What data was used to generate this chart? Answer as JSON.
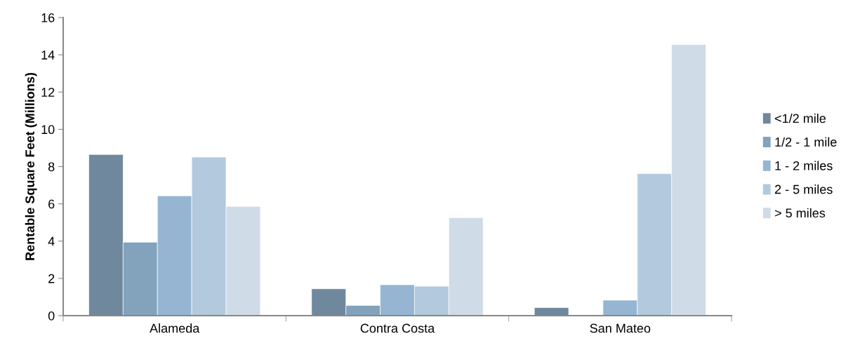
{
  "chart_data": {
    "type": "bar",
    "ylabel": "Rentable Square Feet (Millions)",
    "categories": [
      "Alameda",
      "Contra Costa",
      "San Mateo"
    ],
    "series": [
      {
        "name": "<1/2 mile",
        "color": "#6f889d",
        "values": [
          8.65,
          1.44,
          0.43
        ]
      },
      {
        "name": "1/2 - 1 mile",
        "color": "#83a2bc",
        "values": [
          3.94,
          0.55,
          null
        ]
      },
      {
        "name": "1 - 2 miles",
        "color": "#95b5d2",
        "values": [
          6.43,
          1.66,
          0.83
        ]
      },
      {
        "name": "2 - 5 miles",
        "color": "#b3c9dd",
        "values": [
          8.51,
          1.58,
          7.62
        ]
      },
      {
        "name": "> 5 miles",
        "color": "#cfdce7",
        "values": [
          5.86,
          5.26,
          14.55
        ]
      }
    ],
    "ylim": [
      0,
      16
    ],
    "yticks": [
      0,
      2,
      4,
      6,
      8,
      10,
      12,
      14,
      16
    ],
    "grid": false,
    "legend": "right"
  }
}
